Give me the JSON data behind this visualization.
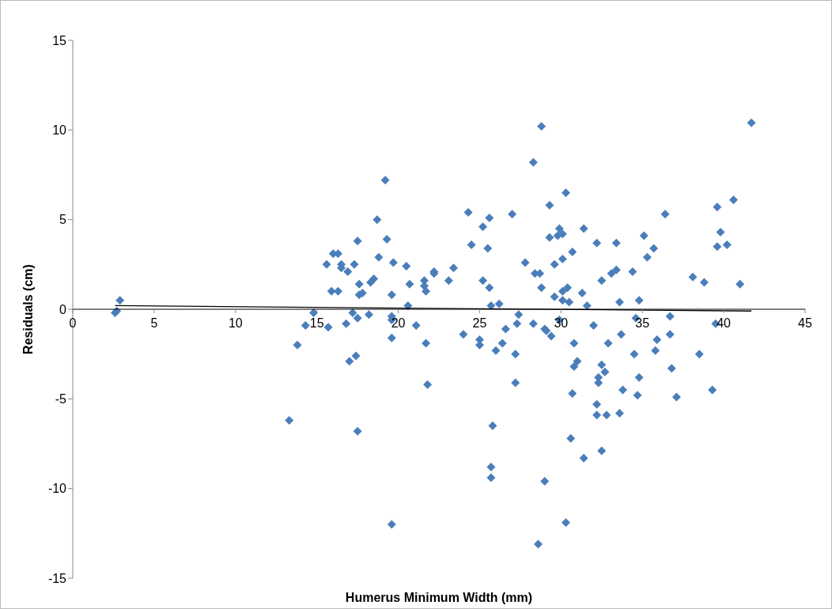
{
  "chart_data": {
    "type": "scatter",
    "xlabel": "Humerus Minimum Width (mm)",
    "ylabel": "Residuals (cm)",
    "xlim": [
      0,
      45
    ],
    "xticks": [
      0,
      5,
      10,
      15,
      20,
      25,
      30,
      35,
      40,
      45
    ],
    "ylim": [
      -15,
      15
    ],
    "yticks": [
      -15,
      -10,
      -5,
      0,
      5,
      10,
      15
    ],
    "grid": false,
    "legend": false,
    "marker": "diamond",
    "series": [
      {
        "color": "#4a7ebb",
        "x": [
          2.6,
          2.7,
          2.9,
          13.3,
          13.8,
          14.3,
          14.8,
          15.6,
          15.7,
          15.9,
          16.0,
          16.3,
          16.3,
          16.5,
          16.5,
          16.8,
          16.9,
          17.0,
          17.2,
          17.3,
          17.4,
          17.5,
          17.5,
          17.6,
          17.6,
          17.5,
          17.8,
          18.2,
          18.3,
          18.5,
          18.7,
          18.8,
          19.2,
          19.3,
          19.6,
          19.6,
          19.6,
          19.6,
          19.7,
          19.6,
          20.5,
          20.6,
          20.7,
          21.1,
          21.6,
          21.6,
          21.7,
          21.7,
          21.8,
          22.2,
          22.2,
          23.1,
          23.4,
          24.0,
          24.3,
          24.5,
          25.0,
          25.0,
          25.2,
          25.2,
          25.5,
          25.6,
          25.6,
          25.7,
          25.8,
          25.7,
          25.7,
          26.0,
          26.2,
          26.4,
          26.6,
          27.0,
          27.2,
          27.2,
          27.3,
          27.4,
          27.8,
          28.3,
          28.3,
          28.4,
          28.7,
          28.6,
          28.8,
          28.8,
          29.0,
          29.0,
          29.1,
          29.3,
          29.3,
          29.4,
          29.6,
          29.6,
          29.8,
          29.9,
          29.9,
          30.1,
          30.1,
          30.1,
          30.1,
          30.3,
          30.3,
          30.4,
          30.5,
          30.6,
          30.7,
          30.7,
          30.8,
          30.8,
          31.0,
          31.3,
          31.4,
          31.4,
          31.6,
          32.0,
          32.2,
          32.2,
          32.2,
          32.3,
          32.3,
          32.5,
          32.5,
          32.5,
          32.7,
          32.8,
          32.9,
          33.1,
          33.4,
          33.4,
          33.6,
          33.6,
          33.7,
          33.8,
          34.4,
          34.5,
          34.6,
          34.7,
          34.8,
          34.8,
          35.1,
          35.3,
          35.7,
          35.8,
          35.9,
          36.4,
          36.7,
          36.7,
          36.8,
          37.1,
          38.1,
          38.5,
          38.8,
          39.3,
          39.5,
          39.6,
          39.6,
          39.8,
          40.2,
          40.6,
          41.0,
          41.7
        ],
        "values": [
          -0.2,
          -0.1,
          0.5,
          -6.2,
          -2.0,
          -0.9,
          -0.2,
          2.5,
          -1.0,
          1.0,
          3.1,
          3.1,
          1.0,
          2.5,
          2.3,
          -0.8,
          2.1,
          -2.9,
          -0.2,
          2.5,
          -2.6,
          3.8,
          -0.5,
          1.4,
          0.8,
          -6.8,
          0.9,
          -0.3,
          1.5,
          1.7,
          5.0,
          2.9,
          7.2,
          3.9,
          -0.4,
          -0.6,
          -1.6,
          0.8,
          2.6,
          -12.0,
          2.4,
          0.2,
          1.4,
          -0.9,
          1.6,
          1.3,
          1.0,
          -1.9,
          -4.2,
          2.1,
          2.0,
          1.6,
          2.3,
          -1.4,
          5.4,
          3.6,
          -1.7,
          -2.0,
          1.6,
          4.6,
          3.4,
          5.1,
          1.2,
          0.2,
          -6.5,
          -8.8,
          -9.4,
          -2.3,
          0.3,
          -1.9,
          -1.1,
          5.3,
          -2.5,
          -4.1,
          -0.8,
          -0.3,
          2.6,
          8.2,
          -0.8,
          2.0,
          2.0,
          -13.1,
          10.2,
          1.2,
          -9.6,
          -1.1,
          -1.2,
          5.8,
          4.0,
          -1.5,
          0.7,
          2.5,
          4.1,
          4.5,
          -0.6,
          4.2,
          2.8,
          1.0,
          0.5,
          6.5,
          -11.9,
          1.2,
          0.4,
          -7.2,
          -4.7,
          3.2,
          -1.9,
          -3.2,
          -2.9,
          0.9,
          4.5,
          -8.3,
          0.2,
          -0.9,
          3.7,
          -5.9,
          -5.3,
          -4.1,
          -3.8,
          1.6,
          -3.1,
          -7.9,
          -3.5,
          -5.9,
          -1.9,
          2.0,
          2.2,
          3.7,
          -5.8,
          0.4,
          -1.4,
          -4.5,
          2.1,
          -2.5,
          -0.5,
          -4.8,
          0.5,
          -3.8,
          4.1,
          2.9,
          3.4,
          -2.3,
          -1.7,
          5.3,
          -0.4,
          -1.4,
          -3.3,
          -4.9,
          1.8,
          -2.5,
          1.5,
          -4.5,
          -0.8,
          3.5,
          5.7,
          4.3,
          3.6,
          6.1,
          1.4,
          10.4
        ]
      },
      {
        "type": "line",
        "color": "#000000",
        "marker": "none",
        "x": [
          2.6,
          41.7
        ],
        "values": [
          0.2,
          -0.1
        ]
      }
    ]
  }
}
